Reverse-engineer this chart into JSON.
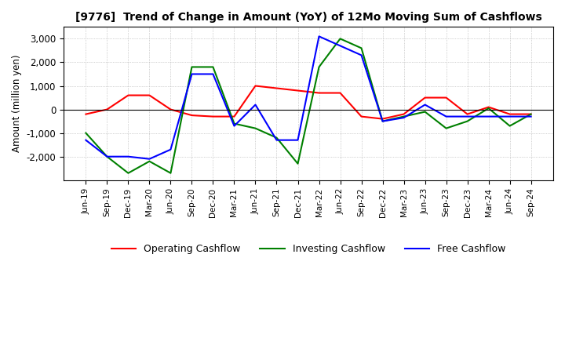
{
  "title": "[9776]  Trend of Change in Amount (YoY) of 12Mo Moving Sum of Cashflows",
  "ylabel": "Amount (million yen)",
  "x_labels": [
    "Jun-19",
    "Sep-19",
    "Dec-19",
    "Mar-20",
    "Jun-20",
    "Sep-20",
    "Dec-20",
    "Mar-21",
    "Jun-21",
    "Sep-21",
    "Dec-21",
    "Mar-22",
    "Jun-22",
    "Sep-22",
    "Dec-22",
    "Mar-23",
    "Jun-23",
    "Sep-23",
    "Dec-23",
    "Mar-24",
    "Jun-24",
    "Sep-24"
  ],
  "operating": [
    -200,
    0,
    600,
    600,
    0,
    -250,
    -300,
    -300,
    1000,
    900,
    800,
    700,
    700,
    -300,
    -400,
    -200,
    500,
    500,
    -200,
    100,
    -200,
    -200
  ],
  "investing": [
    -1000,
    -2000,
    -2700,
    -2200,
    -2700,
    1800,
    1800,
    -600,
    -800,
    -1200,
    -2300,
    1800,
    3000,
    2600,
    -500,
    -300,
    -100,
    -800,
    -500,
    50,
    -700,
    -200
  ],
  "free": [
    -1300,
    -2000,
    -2000,
    -2100,
    -1700,
    1500,
    1500,
    -700,
    200,
    -1300,
    -1300,
    3100,
    2700,
    2300,
    -500,
    -350,
    200,
    -300,
    -300,
    -300,
    -300,
    -300
  ],
  "colors": {
    "operating": "#ff0000",
    "investing": "#008000",
    "free": "#0000ff"
  },
  "ylim": [
    -3000,
    3500
  ],
  "yticks": [
    -2000,
    -1000,
    0,
    1000,
    2000,
    3000
  ]
}
